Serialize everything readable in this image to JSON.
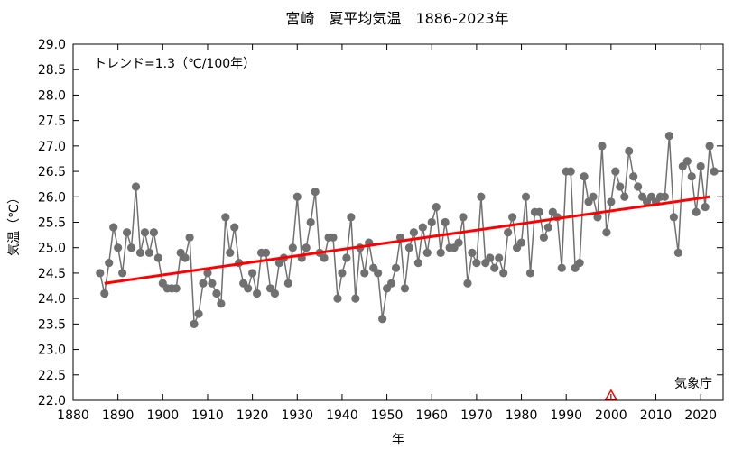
{
  "chart_data": {
    "type": "scatter",
    "title": "宮崎　夏平均気温　1886-2023年",
    "xlabel": "年",
    "ylabel": "気温（℃）",
    "xlim": [
      1880,
      2025
    ],
    "ylim": [
      22.0,
      29.0
    ],
    "x_ticks": [
      "1880",
      "1890",
      "1900",
      "1910",
      "1920",
      "1930",
      "1940",
      "1950",
      "1960",
      "1970",
      "1980",
      "1990",
      "2000",
      "2010",
      "2020"
    ],
    "y_ticks": [
      "22.0",
      "22.5",
      "23.0",
      "23.5",
      "24.0",
      "24.5",
      "25.0",
      "25.5",
      "26.0",
      "26.5",
      "27.0",
      "27.5",
      "28.0",
      "28.5",
      "29.0"
    ],
    "grid": false,
    "trend_label": "トレンド=1.3（℃/100年）",
    "source_label": "気象庁",
    "colors": {
      "series": "#707070",
      "trend": "#ff0000",
      "marker": "#ff0000"
    },
    "series": [
      {
        "x": [
          1886,
          1887,
          1888,
          1889,
          1890,
          1891,
          1892,
          1893,
          1894,
          1895,
          1896,
          1897,
          1898,
          1899,
          1900,
          1901,
          1902,
          1903,
          1904,
          1905,
          1906,
          1907,
          1908,
          1909,
          1910,
          1911,
          1912,
          1913,
          1914,
          1915,
          1916,
          1917,
          1918,
          1919,
          1920,
          1921,
          1922,
          1923,
          1924,
          1925,
          1926,
          1927,
          1928,
          1929,
          1930,
          1931,
          1932,
          1933,
          1934,
          1935,
          1936,
          1937,
          1938,
          1939,
          1940,
          1941,
          1942,
          1943,
          1944,
          1945,
          1946,
          1947,
          1948,
          1949,
          1950,
          1951,
          1952,
          1953,
          1954,
          1955,
          1956,
          1957,
          1958,
          1959,
          1960,
          1961,
          1962,
          1963,
          1964,
          1965,
          1966,
          1967,
          1968,
          1969,
          1970,
          1971,
          1972,
          1973,
          1974,
          1975,
          1976,
          1977,
          1978,
          1979,
          1980,
          1981,
          1982,
          1983,
          1984,
          1985,
          1986,
          1987,
          1988,
          1989,
          1990,
          1991,
          1992,
          1993,
          1994,
          1995,
          1996,
          1997,
          1998,
          1999,
          2000,
          2001,
          2002,
          2003,
          2004,
          2005,
          2006,
          2007,
          2008,
          2009,
          2010,
          2011,
          2012,
          2013,
          2014,
          2015,
          2016,
          2017,
          2018,
          2019,
          2020,
          2021,
          2022,
          2023
        ],
        "y": [
          24.5,
          24.1,
          24.7,
          25.4,
          25.0,
          24.5,
          25.3,
          25.0,
          26.2,
          24.9,
          25.3,
          24.9,
          25.3,
          24.8,
          24.3,
          24.2,
          24.2,
          24.2,
          24.9,
          24.8,
          25.2,
          23.5,
          23.7,
          24.3,
          24.5,
          24.3,
          24.1,
          23.9,
          25.6,
          24.9,
          25.4,
          24.7,
          24.3,
          24.2,
          24.5,
          24.1,
          24.9,
          24.9,
          24.2,
          24.1,
          24.7,
          24.8,
          24.3,
          25.0,
          26.0,
          24.8,
          25.0,
          25.5,
          26.1,
          24.9,
          24.8,
          25.2,
          25.2,
          24.0,
          24.5,
          24.8,
          25.6,
          24.0,
          25.0,
          24.5,
          25.1,
          24.6,
          24.5,
          23.6,
          24.2,
          24.3,
          24.6,
          25.2,
          24.2,
          25.0,
          25.3,
          24.7,
          25.4,
          24.9,
          25.5,
          25.8,
          24.9,
          25.5,
          25.0,
          25.0,
          25.1,
          25.6,
          24.3,
          24.9,
          24.7,
          26.0,
          24.7,
          24.8,
          24.6,
          24.8,
          24.5,
          25.3,
          25.6,
          25.0,
          25.1,
          26.0,
          24.5,
          25.7,
          25.7,
          25.2,
          25.4,
          25.7,
          25.6,
          24.6,
          26.5,
          26.5,
          24.6,
          24.7,
          26.4,
          25.9,
          26.0,
          25.6,
          27.0,
          25.3,
          25.9,
          26.5,
          26.2,
          26.0,
          26.9,
          26.4,
          26.2,
          26.0,
          25.9,
          26.0,
          25.9,
          26.0,
          26.0,
          27.2,
          25.6,
          24.9,
          26.6,
          26.7,
          26.4,
          25.7,
          26.6,
          25.8,
          27.0,
          26.5
        ]
      }
    ],
    "trend": {
      "x": [
        1887,
        2022
      ],
      "y": [
        24.3,
        26.0
      ]
    },
    "marker_x": 2000
  }
}
